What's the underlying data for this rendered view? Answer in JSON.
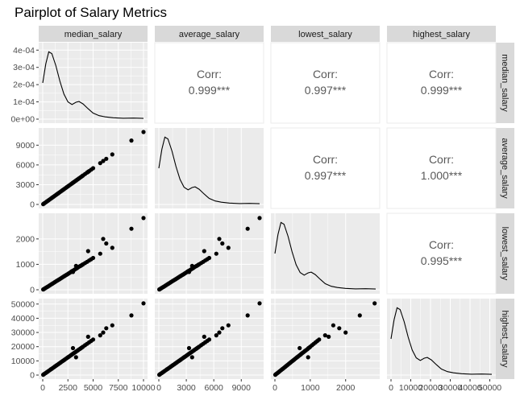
{
  "chart_data": {
    "type": "pairplot",
    "title": "Pairplot of Salary Metrics",
    "variables": [
      "median_salary",
      "average_salary",
      "lowest_salary",
      "highest_salary"
    ],
    "corr_label": "Corr:",
    "correlations": [
      {
        "row": 0,
        "col": 1,
        "value": "0.999***"
      },
      {
        "row": 0,
        "col": 2,
        "value": "0.997***"
      },
      {
        "row": 0,
        "col": 3,
        "value": "0.999***"
      },
      {
        "row": 1,
        "col": 2,
        "value": "0.997***"
      },
      {
        "row": 1,
        "col": 3,
        "value": "1.000***"
      },
      {
        "row": 2,
        "col": 3,
        "value": "0.995***"
      }
    ],
    "ranges": {
      "median_salary": [
        0,
        10000
      ],
      "average_salary": [
        0,
        11000
      ],
      "lowest_salary": [
        0,
        2850
      ],
      "highest_salary": [
        0,
        51000
      ],
      "density": [
        0,
        0.00042
      ]
    },
    "x_ticks": {
      "median_salary": {
        "values": [
          0,
          2500,
          5000,
          7500,
          10000
        ],
        "labels": [
          "0",
          "2500",
          "5000",
          "7500",
          "10000"
        ]
      },
      "average_salary": {
        "values": [
          0,
          3000,
          6000,
          9000
        ],
        "labels": [
          "0",
          "3000",
          "6000",
          "9000"
        ]
      },
      "lowest_salary": {
        "values": [
          0,
          1000,
          2000
        ],
        "labels": [
          "0",
          "1000",
          "2000"
        ]
      },
      "highest_salary": {
        "values": [
          0,
          10000,
          20000,
          30000,
          40000,
          50000
        ],
        "labels": [
          "0",
          "10000",
          "20000",
          "30000",
          "40000",
          "50000"
        ]
      }
    },
    "y_ticks": {
      "density": {
        "values": [
          0,
          0.0001,
          0.0002,
          0.0003,
          0.0004
        ],
        "labels": [
          "0e+00",
          "1e-04",
          "2e-04",
          "3e-04",
          "4e-04"
        ]
      },
      "average_salary": {
        "values": [
          0,
          3000,
          6000,
          9000
        ],
        "labels": [
          "0",
          "3000",
          "6000",
          "9000"
        ]
      },
      "lowest_salary": {
        "values": [
          0,
          1000,
          2000
        ],
        "labels": [
          "0",
          "1000",
          "2000"
        ]
      },
      "highest_salary": {
        "values": [
          0,
          10000,
          20000,
          30000,
          40000,
          50000
        ],
        "labels": [
          "0",
          "10000",
          "20000",
          "30000",
          "40000",
          "50000"
        ]
      }
    },
    "density_curve_median": [
      [
        0,
        0.00021
      ],
      [
        300,
        0.00032
      ],
      [
        600,
        0.00039
      ],
      [
        900,
        0.00038
      ],
      [
        1300,
        0.00031
      ],
      [
        1700,
        0.00022
      ],
      [
        2100,
        0.000145
      ],
      [
        2500,
        0.0001
      ],
      [
        2900,
        8.5e-05
      ],
      [
        3300,
        9.8e-05
      ],
      [
        3600,
        0.000102
      ],
      [
        4000,
        8.8e-05
      ],
      [
        4500,
        6e-05
      ],
      [
        5000,
        3.5e-05
      ],
      [
        5600,
        2e-05
      ],
      [
        6200,
        1.3e-05
      ],
      [
        7000,
        8e-06
      ],
      [
        8000,
        5e-06
      ],
      [
        9000,
        6e-06
      ],
      [
        10000,
        4e-06
      ]
    ],
    "scatter_points": [
      [
        50,
        55,
        12,
        250
      ],
      [
        120,
        130,
        30,
        600
      ],
      [
        200,
        220,
        50,
        1000
      ],
      [
        300,
        330,
        75,
        1500
      ],
      [
        400,
        440,
        100,
        2000
      ],
      [
        500,
        550,
        125,
        2500
      ],
      [
        600,
        660,
        150,
        3000
      ],
      [
        700,
        770,
        175,
        3500
      ],
      [
        800,
        880,
        200,
        4000
      ],
      [
        900,
        990,
        225,
        4500
      ],
      [
        1000,
        1100,
        250,
        5000
      ],
      [
        1100,
        1210,
        275,
        5500
      ],
      [
        1200,
        1320,
        300,
        6000
      ],
      [
        1300,
        1430,
        325,
        6500
      ],
      [
        1400,
        1540,
        350,
        7000
      ],
      [
        1500,
        1650,
        375,
        7500
      ],
      [
        1600,
        1760,
        400,
        8000
      ],
      [
        1700,
        1870,
        425,
        8500
      ],
      [
        1800,
        1980,
        450,
        9000
      ],
      [
        1900,
        2090,
        475,
        9500
      ],
      [
        2000,
        2200,
        500,
        10000
      ],
      [
        2100,
        2310,
        525,
        10500
      ],
      [
        2200,
        2420,
        550,
        11000
      ],
      [
        2300,
        2530,
        575,
        11500
      ],
      [
        2400,
        2640,
        600,
        12000
      ],
      [
        2500,
        2750,
        625,
        12500
      ],
      [
        2600,
        2860,
        650,
        13000
      ],
      [
        2700,
        2970,
        675,
        13500
      ],
      [
        2800,
        3080,
        700,
        14000
      ],
      [
        2900,
        3190,
        730,
        14500
      ],
      [
        3000,
        3300,
        750,
        15000
      ],
      [
        3100,
        3410,
        775,
        15500
      ],
      [
        3200,
        3520,
        800,
        16000
      ],
      [
        3300,
        3630,
        830,
        16500
      ],
      [
        3400,
        3740,
        850,
        17000
      ],
      [
        3500,
        3850,
        880,
        17500
      ],
      [
        3600,
        3960,
        910,
        18000
      ],
      [
        3700,
        4070,
        930,
        18500
      ],
      [
        3800,
        4180,
        950,
        19000
      ],
      [
        3900,
        4290,
        980,
        19500
      ],
      [
        4000,
        4400,
        1000,
        20000
      ],
      [
        4200,
        4620,
        1050,
        21000
      ],
      [
        4400,
        4840,
        1100,
        22000
      ],
      [
        4600,
        5060,
        1150,
        23000
      ],
      [
        4800,
        5280,
        1200,
        24000
      ],
      [
        5000,
        5500,
        1250,
        25000
      ],
      [
        3000,
        3300,
        700,
        19000
      ],
      [
        3300,
        3630,
        940,
        12500
      ],
      [
        4500,
        4950,
        1520,
        27000
      ],
      [
        5700,
        6270,
        1420,
        28000
      ],
      [
        6000,
        6600,
        2000,
        30000
      ],
      [
        6300,
        6930,
        1820,
        33000
      ],
      [
        6900,
        7590,
        1650,
        35000
      ],
      [
        8800,
        9700,
        2400,
        42000
      ],
      [
        10000,
        11000,
        2820,
        50500
      ]
    ]
  }
}
